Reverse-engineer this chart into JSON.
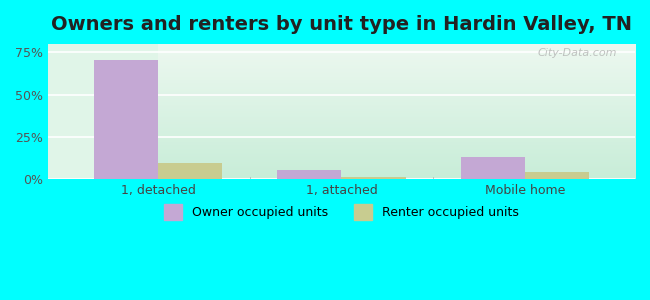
{
  "title": "Owners and renters by unit type in Hardin Valley, TN",
  "categories": [
    "1, detached",
    "1, attached",
    "Mobile home"
  ],
  "owner_values": [
    70.5,
    5.5,
    13.0
  ],
  "renter_values": [
    10.0,
    1.5,
    4.5
  ],
  "owner_color": "#c4a8d4",
  "renter_color": "#c8cc90",
  "ylim": [
    0,
    80
  ],
  "yticks": [
    0,
    25,
    50,
    75
  ],
  "ytick_labels": [
    "0%",
    "25%",
    "50%",
    "75%"
  ],
  "bar_width": 0.35,
  "background_top": "#e0f5e8",
  "background_bottom": "#d8f5e8",
  "legend_owner": "Owner occupied units",
  "legend_renter": "Renter occupied units",
  "title_fontsize": 14,
  "watermark": "City-Data.com",
  "fig_bg_color": "#00ffff"
}
